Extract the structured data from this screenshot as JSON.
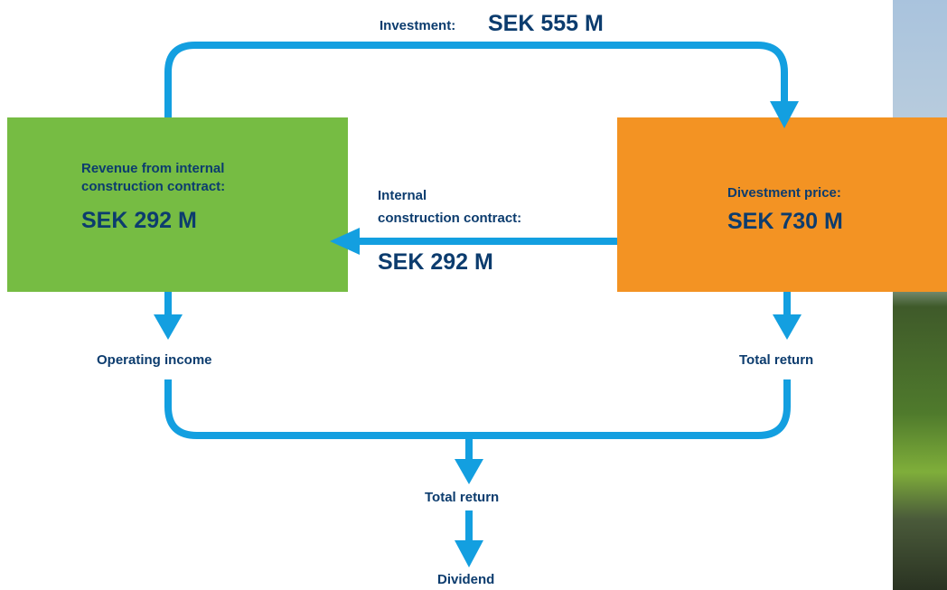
{
  "investment": {
    "label": "Investment:",
    "amount": "SEK 555 M"
  },
  "revenue_box": {
    "lines": [
      "Revenue from internal",
      "construction contract:"
    ],
    "amount": "SEK 292 M"
  },
  "internal_contract": {
    "lines": [
      "Internal",
      "construction contract:"
    ],
    "amount": "SEK 292 M"
  },
  "divestment_box": {
    "label": "Divestment price:",
    "amount": "SEK 730 M"
  },
  "operating_income": "Operating income",
  "total_return_right": "Total return",
  "total_return_center": "Total return",
  "dividend": "Dividend"
}
